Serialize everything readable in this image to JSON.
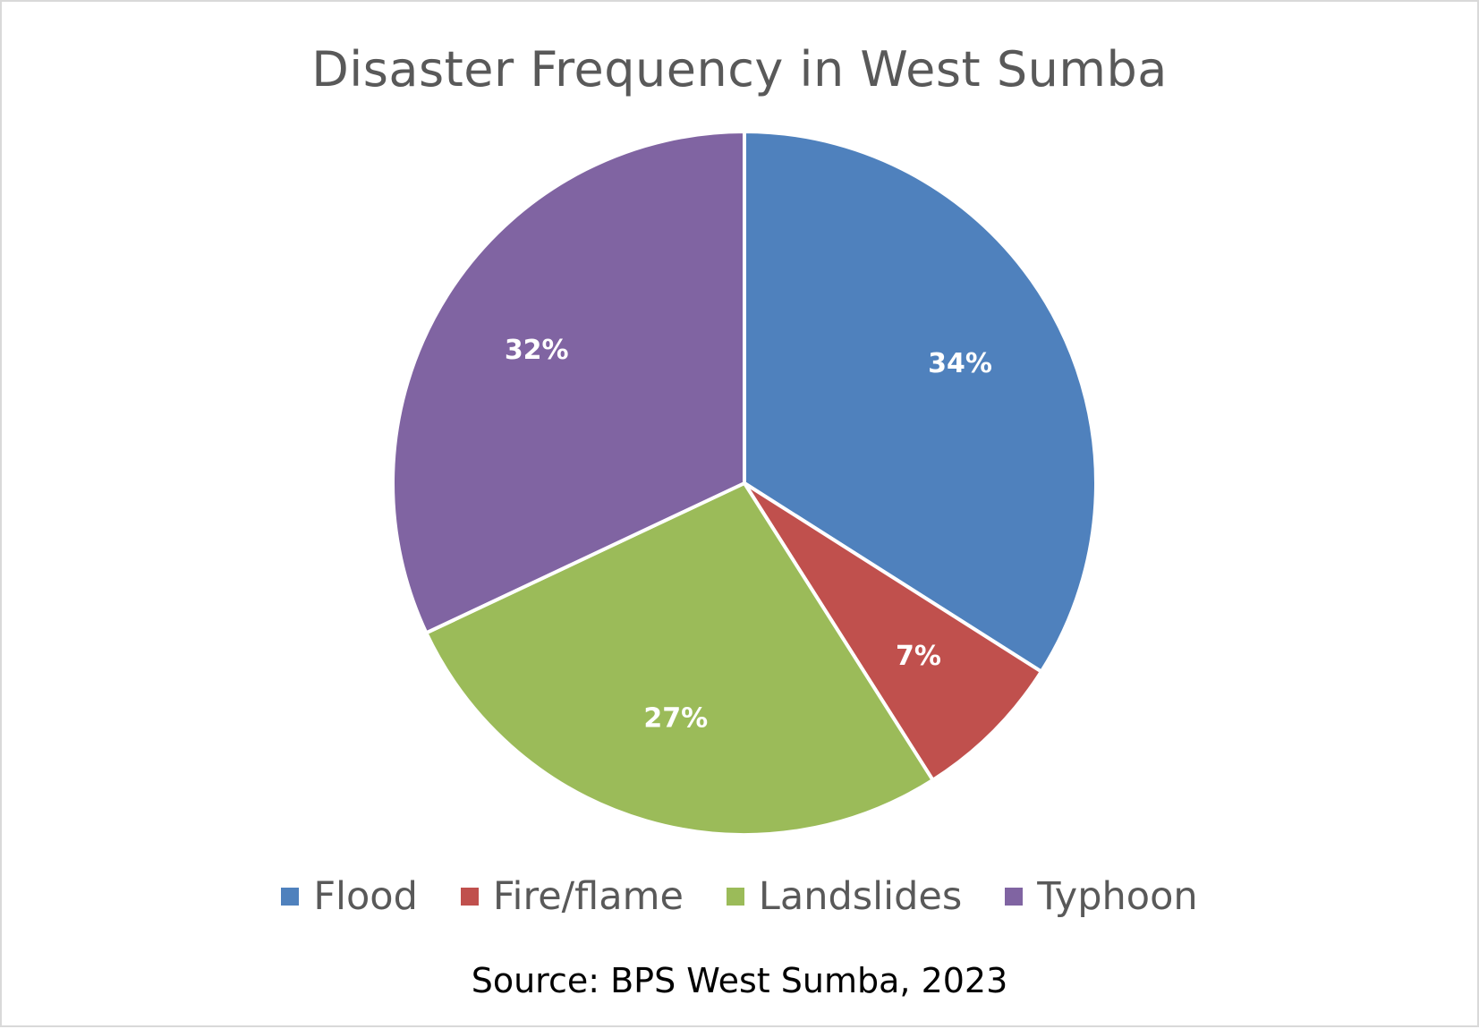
{
  "chart_data": {
    "type": "pie",
    "title": "Disaster Frequency in West Sumba",
    "categories": [
      "Flood",
      "Fire/flame",
      "Landslides",
      "Typhoon"
    ],
    "values": [
      34,
      7,
      27,
      32
    ],
    "labels": [
      "34%",
      "7%",
      "27%",
      "32%"
    ],
    "colors": [
      "#4f81bd",
      "#c0504d",
      "#9bbb59",
      "#8064a2"
    ],
    "legend_position": "bottom",
    "source": "Source: BPS West Sumba, 2023"
  }
}
